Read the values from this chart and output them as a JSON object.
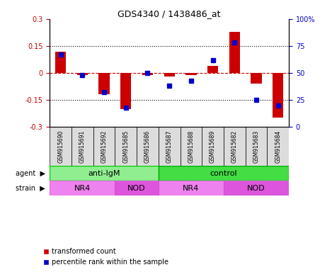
{
  "title": "GDS4340 / 1438486_at",
  "samples": [
    "GSM915690",
    "GSM915691",
    "GSM915692",
    "GSM915685",
    "GSM915686",
    "GSM915687",
    "GSM915688",
    "GSM915689",
    "GSM915682",
    "GSM915683",
    "GSM915684"
  ],
  "red_values": [
    0.12,
    -0.01,
    -0.12,
    -0.2,
    -0.01,
    -0.02,
    -0.01,
    0.04,
    0.23,
    -0.06,
    -0.25
  ],
  "blue_values": [
    67,
    48,
    32,
    18,
    50,
    38,
    43,
    62,
    78,
    25,
    20
  ],
  "ylim": [
    -0.3,
    0.3
  ],
  "y2lim": [
    0,
    100
  ],
  "yticks": [
    -0.3,
    -0.15,
    0,
    0.15,
    0.3
  ],
  "y2ticks": [
    0,
    25,
    50,
    75,
    100
  ],
  "y2ticklabels": [
    "0",
    "25",
    "50",
    "75",
    "100%"
  ],
  "hlines_dotted": [
    -0.15,
    0.15
  ],
  "hline_dashed": 0,
  "red_color": "#CC0000",
  "blue_color": "#0000CC",
  "agent_groups": [
    {
      "label": "anti-IgM",
      "start": 0,
      "end": 5,
      "facecolor": "#90EE90",
      "edgecolor": "#00CC00"
    },
    {
      "label": "control",
      "start": 5,
      "end": 11,
      "facecolor": "#44DD44",
      "edgecolor": "#00AA00"
    }
  ],
  "strain_groups": [
    {
      "label": "NR4",
      "start": 0,
      "end": 3,
      "facecolor": "#EE82EE",
      "edgecolor": "#CC44CC"
    },
    {
      "label": "NOD",
      "start": 3,
      "end": 5,
      "facecolor": "#DD55DD",
      "edgecolor": "#CC44CC"
    },
    {
      "label": "NR4",
      "start": 5,
      "end": 8,
      "facecolor": "#EE82EE",
      "edgecolor": "#CC44CC"
    },
    {
      "label": "NOD",
      "start": 8,
      "end": 11,
      "facecolor": "#DD55DD",
      "edgecolor": "#CC44CC"
    }
  ],
  "legend_red": "transformed count",
  "legend_blue": "percentile rank within the sample",
  "label_fontsize": 8,
  "tick_fontsize": 7,
  "sample_fontsize": 5.5,
  "row_label_fontsize": 7,
  "bar_width": 0.5,
  "marker_size": 5
}
